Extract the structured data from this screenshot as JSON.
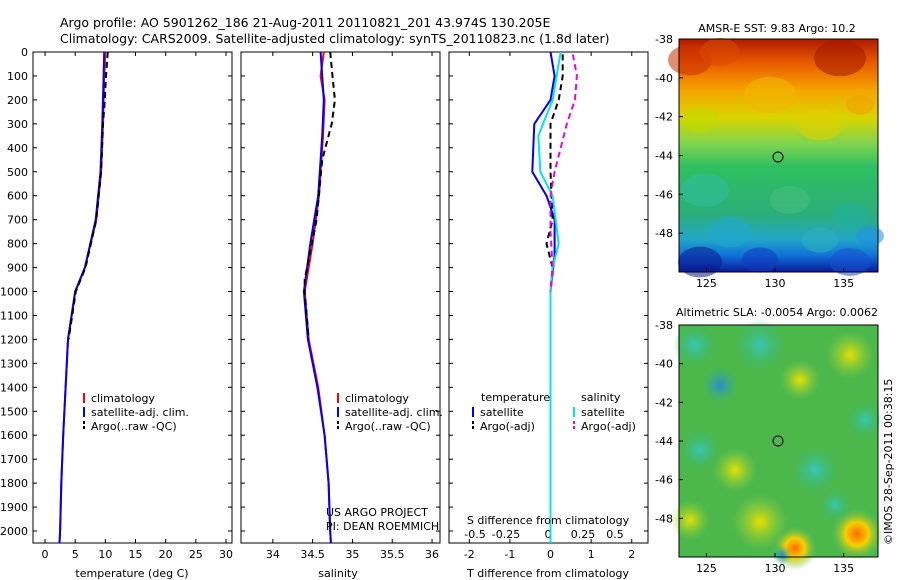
{
  "header": {
    "line1": "Argo profile: AO 5901262_186 21-Aug-2011 20110821_201 43.974S 130.205E",
    "line2": "Climatology: CARS2009. Satellite-adjusted climatology: synTS_20110823.nc (1.8d later)"
  },
  "colors": {
    "climatology": "#ff0000",
    "satellite": "#0000ff",
    "argo": "#000000",
    "sal_satellite": "#00e5ee",
    "sal_argo": "#ee00ee"
  },
  "project_note": {
    "line1": "US ARGO PROJECT",
    "line2": "PI: DEAN ROEMMICH"
  },
  "timestamp_label": "©IMOS 28-Sep-2011 00:38:15",
  "chart_data": [
    {
      "type": "line",
      "panel": "temperature",
      "xlabel": "temperature (deg C)",
      "xlim": [
        -2,
        31
      ],
      "xticks": [
        0,
        5,
        10,
        15,
        20,
        25,
        30
      ],
      "xtick_labels": [
        "0",
        "5",
        "10",
        "15",
        "20",
        "25",
        "30"
      ],
      "ylim": [
        0,
        2050
      ],
      "yticks": [
        0,
        100,
        200,
        300,
        400,
        500,
        600,
        700,
        800,
        900,
        1000,
        1100,
        1200,
        1300,
        1400,
        1500,
        1600,
        1700,
        1800,
        1900,
        2000
      ],
      "ytick_labels": [
        "0",
        "100",
        "200",
        "300",
        "400",
        "500",
        "600",
        "700",
        "800",
        "900",
        "1000",
        "1100",
        "1200",
        "1300",
        "1400",
        "1500",
        "1600",
        "1700",
        "1800",
        "1900",
        "2000"
      ],
      "legend": [
        "climatology",
        "satellite-adj. clim.",
        "Argo(..raw -QC)"
      ],
      "legend_placement": "lower-center",
      "series": [
        {
          "name": "climatology",
          "style": "solid",
          "points": [
            [
              10.0,
              0
            ],
            [
              9.8,
              100
            ],
            [
              9.6,
              300
            ],
            [
              9.3,
              500
            ],
            [
              8.5,
              700
            ],
            [
              6.6,
              900
            ],
            [
              5.0,
              1000
            ],
            [
              3.8,
              1200
            ],
            [
              3.4,
              1400
            ],
            [
              3.0,
              1600
            ],
            [
              2.7,
              1800
            ],
            [
              2.5,
              2000
            ],
            [
              2.4,
              2050
            ]
          ]
        },
        {
          "name": "satellite-adj. clim.",
          "style": "solid",
          "points": [
            [
              9.8,
              0
            ],
            [
              9.7,
              100
            ],
            [
              9.5,
              300
            ],
            [
              9.2,
              500
            ],
            [
              8.4,
              700
            ],
            [
              6.6,
              900
            ],
            [
              5.0,
              1000
            ],
            [
              3.8,
              1200
            ],
            [
              3.4,
              1400
            ],
            [
              3.0,
              1600
            ],
            [
              2.7,
              1800
            ],
            [
              2.5,
              2000
            ],
            [
              2.4,
              2050
            ]
          ]
        },
        {
          "name": "Argo(..raw -QC)",
          "style": "dashed",
          "points": [
            [
              10.4,
              0
            ],
            [
              10.1,
              100
            ],
            [
              9.9,
              200
            ],
            [
              9.6,
              300
            ],
            [
              9.3,
              500
            ],
            [
              8.5,
              700
            ],
            [
              6.7,
              900
            ],
            [
              5.1,
              1000
            ],
            [
              3.9,
              1200
            ]
          ]
        }
      ]
    },
    {
      "type": "line",
      "panel": "salinity",
      "xlabel": "salinity",
      "xlim": [
        33.6,
        36.1
      ],
      "xticks": [
        34,
        34.5,
        35,
        35.5,
        36
      ],
      "xtick_labels": [
        "34",
        "34.5",
        "35",
        "35.5",
        "36"
      ],
      "ylim": [
        0,
        2050
      ],
      "legend": [
        "climatology",
        "satellite-adj. clim.",
        "Argo(..raw -QC)"
      ],
      "legend_placement": "lower-center",
      "series": [
        {
          "name": "climatology",
          "style": "solid",
          "points": [
            [
              34.64,
              0
            ],
            [
              34.6,
              100
            ],
            [
              34.65,
              200
            ],
            [
              34.63,
              350
            ],
            [
              34.58,
              600
            ],
            [
              34.5,
              800
            ],
            [
              34.4,
              1000
            ],
            [
              34.45,
              1200
            ],
            [
              34.57,
              1400
            ],
            [
              34.65,
              1600
            ],
            [
              34.7,
              1800
            ],
            [
              34.72,
              2000
            ],
            [
              34.73,
              2050
            ]
          ]
        },
        {
          "name": "satellite-adj. clim.",
          "style": "solid",
          "points": [
            [
              34.6,
              0
            ],
            [
              34.62,
              100
            ],
            [
              34.64,
              200
            ],
            [
              34.62,
              350
            ],
            [
              34.57,
              600
            ],
            [
              34.47,
              800
            ],
            [
              34.39,
              1000
            ],
            [
              34.44,
              1200
            ],
            [
              34.56,
              1400
            ],
            [
              34.65,
              1600
            ],
            [
              34.7,
              1800
            ],
            [
              34.72,
              2000
            ],
            [
              34.73,
              2050
            ]
          ]
        },
        {
          "name": "Argo(..raw -QC)",
          "style": "dashed",
          "points": [
            [
              34.72,
              0
            ],
            [
              34.75,
              100
            ],
            [
              34.78,
              200
            ],
            [
              34.74,
              300
            ],
            [
              34.62,
              450
            ],
            [
              34.55,
              700
            ],
            [
              34.4,
              950
            ],
            [
              34.4,
              1000
            ],
            [
              34.45,
              1200
            ]
          ]
        }
      ]
    },
    {
      "type": "line",
      "panel": "differences",
      "xlabel": "T difference from climatology",
      "xlabel_top": "S difference from climatology",
      "xlim": [
        -2.5,
        2.4
      ],
      "xticks": [
        -2,
        -1,
        0,
        1,
        2
      ],
      "xtick_labels": [
        "-2",
        "-1",
        "0",
        "1",
        "2"
      ],
      "s_tick_labels": [
        "-0.5",
        "-0.25",
        "0",
        "0.25",
        "0.5"
      ],
      "ylim": [
        0,
        2050
      ],
      "legend_groups": [
        {
          "title": "temperature",
          "entries": [
            "satellite",
            "Argo(-adj)"
          ]
        },
        {
          "title": "salinity",
          "entries": [
            "satellite",
            "Argo(-adj)"
          ]
        }
      ],
      "legend_placement": "lower-center",
      "series": [
        {
          "name": "temperature satellite",
          "style": "solid",
          "points": [
            [
              0.0,
              0
            ],
            [
              0.1,
              100
            ],
            [
              0.0,
              200
            ],
            [
              -0.4,
              300
            ],
            [
              -0.45,
              500
            ],
            [
              -0.1,
              600
            ],
            [
              0.1,
              700
            ],
            [
              0.1,
              850
            ],
            [
              0.0,
              1000
            ],
            [
              0.0,
              2000
            ],
            [
              0.0,
              2050
            ]
          ]
        },
        {
          "name": "temperature Argo(-adj)",
          "style": "dashed",
          "points": [
            [
              0.3,
              10
            ],
            [
              0.3,
              100
            ],
            [
              0.2,
              200
            ],
            [
              0.0,
              300
            ],
            [
              0.0,
              500
            ],
            [
              0.05,
              700
            ],
            [
              -0.1,
              800
            ],
            [
              0.05,
              900
            ],
            [
              0.0,
              1000
            ]
          ]
        },
        {
          "name": "salinity satellite",
          "style": "solid",
          "points": [
            [
              0.25,
              0
            ],
            [
              0.15,
              100
            ],
            [
              0.05,
              200
            ],
            [
              -0.3,
              350
            ],
            [
              -0.25,
              500
            ],
            [
              0.05,
              600
            ],
            [
              0.2,
              800
            ],
            [
              0.05,
              900
            ],
            [
              0.0,
              1000
            ],
            [
              0.0,
              2000
            ],
            [
              0.0,
              2050
            ]
          ]
        },
        {
          "name": "salinity Argo(-adj)",
          "style": "dashed",
          "points": [
            [
              0.55,
              10
            ],
            [
              0.65,
              100
            ],
            [
              0.6,
              200
            ],
            [
              0.4,
              300
            ],
            [
              0.1,
              500
            ],
            [
              0.0,
              600
            ],
            [
              0.0,
              750
            ],
            [
              0.05,
              900
            ],
            [
              0.0,
              1000
            ]
          ]
        }
      ]
    },
    {
      "type": "heatmap",
      "panel": "sst_map",
      "title": "AMSR-E SST: 9.83 Argo: 10.2",
      "xticks": [
        125,
        130,
        135
      ],
      "yticks": [
        -38,
        -40,
        -42,
        -44,
        -46,
        -48
      ],
      "xlim": [
        123,
        137.5
      ],
      "ylim": [
        -50,
        -38
      ],
      "marker": {
        "lon": 130.205,
        "lat": -43.974
      }
    },
    {
      "type": "heatmap",
      "panel": "sla_map",
      "title": "Altimetric SLA: -0.0054 Argo: 0.0062",
      "xticks": [
        125,
        130,
        135
      ],
      "yticks": [
        -38,
        -40,
        -42,
        -44,
        -46,
        -48
      ],
      "xlim": [
        123,
        137.5
      ],
      "ylim": [
        -50,
        -38
      ],
      "marker": {
        "lon": 130.205,
        "lat": -43.974
      }
    }
  ]
}
